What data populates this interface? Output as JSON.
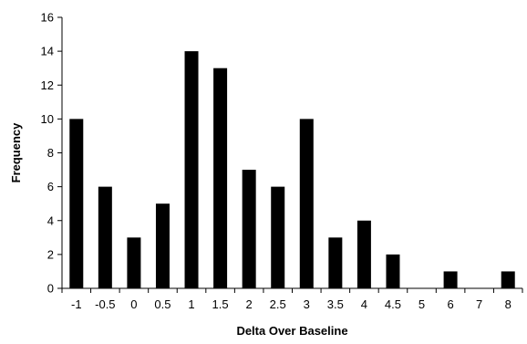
{
  "chart_data": {
    "type": "bar",
    "categories": [
      "-1",
      "-0.5",
      "0",
      "0.5",
      "1",
      "1.5",
      "2",
      "2.5",
      "3",
      "3.5",
      "4",
      "4.5",
      "5",
      "6",
      "7",
      "8"
    ],
    "values": [
      10,
      6,
      3,
      5,
      14,
      13,
      7,
      6,
      10,
      3,
      4,
      2,
      0,
      1,
      0,
      1
    ],
    "title": "",
    "xlabel": "Delta Over Baseline",
    "ylabel": "Frequency",
    "ylim": [
      0,
      16
    ],
    "yticks": [
      0,
      2,
      4,
      6,
      8,
      10,
      12,
      14,
      16
    ],
    "grid": false,
    "legend": "none",
    "bar_color": "#000000"
  }
}
